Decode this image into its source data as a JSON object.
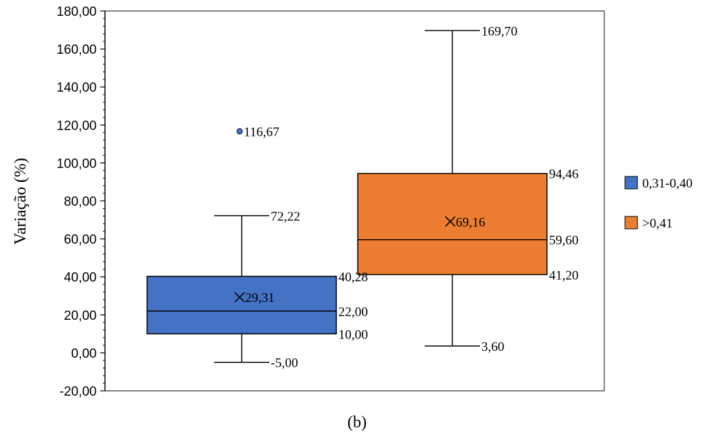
{
  "chart_data": {
    "type": "boxplot",
    "ylabel": "Variação (%)",
    "ylim": [
      -20,
      180
    ],
    "yticks": [
      "-20,00",
      "0,00",
      "20,00",
      "40,00",
      "60,00",
      "80,00",
      "100,00",
      "120,00",
      "140,00",
      "160,00",
      "180,00"
    ],
    "ytick_values": [
      -20,
      0,
      20,
      40,
      60,
      80,
      100,
      120,
      140,
      160,
      180
    ],
    "series": [
      {
        "name": "0,31-0,40",
        "color": "#4472C4",
        "min": -5.0,
        "q1": 10.0,
        "median": 22.0,
        "q3": 40.28,
        "max": 72.22,
        "mean": 29.31,
        "outliers": [
          116.67
        ],
        "labels": {
          "min": "-5,00",
          "q1": "10,00",
          "median": "22,00",
          "q3": "40,28",
          "max": "72,22",
          "mean": "29,31",
          "outlier": "116,67"
        }
      },
      {
        "name": ">0,41",
        "color": "#ED7D31",
        "min": 3.6,
        "q1": 41.2,
        "median": 59.6,
        "q3": 94.46,
        "max": 169.7,
        "mean": 69.16,
        "outliers": [],
        "labels": {
          "min": "3,60",
          "q1": "41,20",
          "median": "59,60",
          "q3": "94,46",
          "max": "169,70",
          "mean": "69,16"
        }
      }
    ],
    "grid": false,
    "legend_position": "right"
  },
  "caption": "(b)"
}
